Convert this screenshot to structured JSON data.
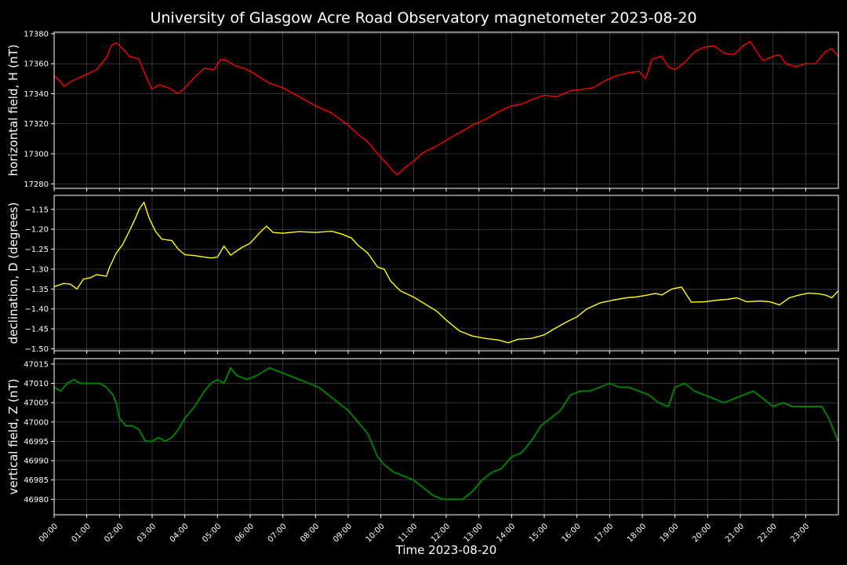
{
  "chart_data": {
    "type": "line",
    "title": "University of Glasgow Acre Road Observatory magnetometer 2023-08-20",
    "xlabel": "Time 2023-08-20",
    "x_ticks": [
      "00:00",
      "01:00",
      "02:00",
      "03:00",
      "04:00",
      "05:00",
      "06:00",
      "07:00",
      "08:00",
      "09:00",
      "10:00",
      "11:00",
      "12:00",
      "13:00",
      "14:00",
      "15:00",
      "16:00",
      "17:00",
      "18:00",
      "19:00",
      "20:00",
      "21:00",
      "22:00",
      "23:00"
    ],
    "xlim": [
      0,
      24
    ],
    "panels": [
      {
        "ylabel": "horizontal field, H (nT)",
        "color": "#ff0000",
        "ylim": [
          17277,
          17381
        ],
        "yticks": [
          17280,
          17300,
          17320,
          17340,
          17360,
          17380
        ],
        "ytick_labels": [
          "17280",
          "17300",
          "17320",
          "17340",
          "17360",
          "17380"
        ],
        "x": [
          0,
          0.15,
          0.3,
          0.5,
          0.8,
          1.0,
          1.3,
          1.6,
          1.75,
          1.9,
          2.1,
          2.3,
          2.6,
          2.8,
          3.0,
          3.2,
          3.5,
          3.8,
          4.0,
          4.3,
          4.6,
          4.9,
          5.1,
          5.3,
          5.5,
          5.8,
          6.0,
          6.3,
          6.6,
          7.0,
          7.5,
          8.0,
          8.5,
          9.0,
          9.3,
          9.6,
          9.9,
          10.2,
          10.4,
          10.5,
          10.7,
          11.0,
          11.3,
          11.6,
          12.0,
          12.4,
          12.8,
          13.2,
          13.6,
          14.0,
          14.3,
          14.6,
          15.0,
          15.4,
          15.8,
          16.2,
          16.5,
          16.8,
          17.2,
          17.6,
          17.9,
          18.1,
          18.3,
          18.6,
          18.8,
          19.0,
          19.3,
          19.6,
          19.9,
          20.2,
          20.5,
          20.8,
          21.1,
          21.3,
          21.5,
          21.7,
          22.0,
          22.2,
          22.4,
          22.7,
          23.0,
          23.3,
          23.6,
          23.8,
          23.99
        ],
        "values": [
          17352,
          17349,
          17345,
          17348,
          17351,
          17353,
          17356,
          17364,
          17372,
          17374,
          17370,
          17365,
          17363,
          17352,
          17343,
          17346,
          17344,
          17340,
          17344,
          17351,
          17357,
          17356,
          17363,
          17362,
          17359,
          17357,
          17355,
          17351,
          17347,
          17344,
          17338,
          17332,
          17327,
          17319,
          17313,
          17308,
          17300,
          17293,
          17288,
          17286,
          17290,
          17295,
          17301,
          17304,
          17309,
          17314,
          17319,
          17323,
          17328,
          17332,
          17333,
          17336,
          17339,
          17338,
          17342,
          17343,
          17344,
          17348,
          17352,
          17354,
          17355,
          17350,
          17363,
          17365,
          17358,
          17356,
          17361,
          17368,
          17371,
          17372,
          17367,
          17366,
          17372,
          17375,
          17368,
          17362,
          17365,
          17366,
          17360,
          17358,
          17360,
          17360,
          17368,
          17370,
          17365
        ]
      },
      {
        "ylabel": "declination, D (degrees)",
        "color": "#ffff00",
        "ylim": [
          -1.505,
          -1.115
        ],
        "yticks": [
          -1.5,
          -1.45,
          -1.4,
          -1.35,
          -1.3,
          -1.25,
          -1.2,
          -1.15
        ],
        "ytick_labels": [
          "−1.50",
          "−1.45",
          "−1.40",
          "−1.35",
          "−1.30",
          "−1.25",
          "−1.20",
          "−1.15"
        ],
        "x": [
          0,
          0.3,
          0.5,
          0.7,
          0.9,
          1.1,
          1.3,
          1.6,
          1.7,
          1.9,
          2.1,
          2.3,
          2.5,
          2.6,
          2.75,
          2.9,
          3.1,
          3.3,
          3.6,
          3.8,
          4.0,
          4.3,
          4.6,
          4.8,
          5.0,
          5.2,
          5.4,
          5.7,
          6.0,
          6.3,
          6.5,
          6.7,
          7.0,
          7.5,
          8.0,
          8.5,
          8.8,
          9.1,
          9.3,
          9.6,
          9.9,
          10.1,
          10.3,
          10.6,
          11.0,
          11.3,
          11.7,
          12.0,
          12.4,
          12.8,
          13.2,
          13.6,
          13.9,
          14.2,
          14.6,
          15.0,
          15.3,
          15.7,
          16.0,
          16.3,
          16.7,
          17.1,
          17.5,
          17.8,
          18.1,
          18.4,
          18.6,
          18.9,
          19.2,
          19.5,
          19.9,
          20.3,
          20.6,
          20.9,
          21.2,
          21.6,
          21.9,
          22.2,
          22.5,
          22.8,
          23.1,
          23.4,
          23.6,
          23.8,
          23.99
        ],
        "values": [
          -1.344,
          -1.336,
          -1.338,
          -1.35,
          -1.325,
          -1.322,
          -1.314,
          -1.318,
          -1.295,
          -1.26,
          -1.238,
          -1.205,
          -1.17,
          -1.15,
          -1.132,
          -1.17,
          -1.205,
          -1.225,
          -1.228,
          -1.25,
          -1.264,
          -1.266,
          -1.27,
          -1.272,
          -1.27,
          -1.242,
          -1.265,
          -1.248,
          -1.235,
          -1.208,
          -1.192,
          -1.208,
          -1.21,
          -1.206,
          -1.208,
          -1.205,
          -1.212,
          -1.222,
          -1.24,
          -1.26,
          -1.295,
          -1.3,
          -1.33,
          -1.355,
          -1.37,
          -1.385,
          -1.405,
          -1.428,
          -1.455,
          -1.468,
          -1.474,
          -1.478,
          -1.485,
          -1.476,
          -1.474,
          -1.465,
          -1.45,
          -1.432,
          -1.42,
          -1.4,
          -1.385,
          -1.378,
          -1.372,
          -1.37,
          -1.366,
          -1.361,
          -1.365,
          -1.35,
          -1.345,
          -1.383,
          -1.382,
          -1.378,
          -1.376,
          -1.372,
          -1.382,
          -1.38,
          -1.382,
          -1.39,
          -1.372,
          -1.365,
          -1.36,
          -1.362,
          -1.365,
          -1.372,
          -1.355
        ]
      },
      {
        "ylabel": "vertical field, Z (nT)",
        "color": "#008000",
        "ylim": [
          46976.0,
          47016.4
        ],
        "yticks": [
          46980,
          46985,
          46990,
          46995,
          47000,
          47005,
          47010,
          47015
        ],
        "ytick_labels": [
          "46980",
          "46985",
          "46990",
          "46995",
          "47000",
          "47005",
          "47010",
          "47015"
        ],
        "x": [
          0,
          0.2,
          0.4,
          0.6,
          0.8,
          1.0,
          1.2,
          1.4,
          1.6,
          1.8,
          1.9,
          2.0,
          2.2,
          2.4,
          2.6,
          2.8,
          3.0,
          3.2,
          3.4,
          3.6,
          3.8,
          4.0,
          4.3,
          4.6,
          4.8,
          5.0,
          5.2,
          5.4,
          5.6,
          5.9,
          6.2,
          6.4,
          6.6,
          6.9,
          7.2,
          7.5,
          7.8,
          8.1,
          8.4,
          8.7,
          9.0,
          9.3,
          9.6,
          9.9,
          10.1,
          10.4,
          10.7,
          11.0,
          11.3,
          11.6,
          11.9,
          12.2,
          12.5,
          12.8,
          13.1,
          13.4,
          13.7,
          14.0,
          14.3,
          14.6,
          14.9,
          15.2,
          15.5,
          15.8,
          16.1,
          16.4,
          16.7,
          17.0,
          17.3,
          17.6,
          17.9,
          18.2,
          18.5,
          18.8,
          19.0,
          19.3,
          19.6,
          19.9,
          20.2,
          20.5,
          20.8,
          21.1,
          21.4,
          21.7,
          22.0,
          22.3,
          22.6,
          22.9,
          23.2,
          23.5,
          23.7,
          23.85,
          23.99
        ],
        "values": [
          47009,
          47008,
          47010,
          47011,
          47010,
          47010,
          47010,
          47010,
          47009,
          47007,
          47005,
          47001,
          46999,
          46999,
          46998,
          46995,
          46995,
          46996,
          46995,
          46996,
          46998,
          47001,
          47004,
          47008,
          47010,
          47011,
          47010,
          47014,
          47012,
          47011,
          47012,
          47013,
          47014,
          47013,
          47012,
          47011,
          47010,
          47009,
          47007,
          47005,
          47003,
          47000,
          46997,
          46991,
          46989,
          46987,
          46986,
          46985,
          46983,
          46981,
          46980,
          46980,
          46980,
          46982,
          46985,
          46987,
          46988,
          46991,
          46992,
          46995,
          46999,
          47001,
          47003,
          47007,
          47008,
          47008,
          47009,
          47010,
          47009,
          47009,
          47008,
          47007,
          47005,
          47004,
          47009,
          47010,
          47008,
          47007,
          47006,
          47005,
          47006,
          47007,
          47008,
          47006,
          47004,
          47005,
          47004,
          47004,
          47004,
          47004,
          47001,
          46998,
          46995
        ]
      }
    ]
  }
}
